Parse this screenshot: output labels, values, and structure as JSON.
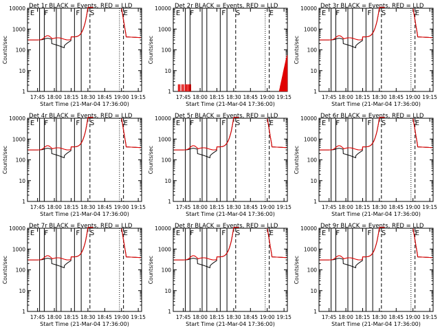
{
  "colors": {
    "events": "#000000",
    "lld": "#e00000",
    "axis": "#000000"
  },
  "chart_data": [
    {
      "type": "line",
      "title": "Det 1r  BLACK = Events, RED = LLD",
      "xlabel": "Start Time (21-Mar-04 17:36:00)",
      "ylabel": "Counts/sec",
      "yscale": "log",
      "ylim": [
        1,
        10000
      ],
      "xlim": [
        17.6,
        19.3
      ],
      "xticks": [
        "17:45",
        "18:00",
        "18:15",
        "18:30",
        "18:45",
        "19:00",
        "19:15"
      ],
      "markers": [
        "E",
        "F",
        "F",
        "S",
        "E"
      ],
      "profile": "normal"
    },
    {
      "type": "line",
      "title": "Det 2r  BLACK = Events, RED = LLD",
      "xlabel": "Start Time (21-Mar-04 17:36:00)",
      "ylabel": "Counts/sec",
      "yscale": "log",
      "ylim": [
        1,
        10000
      ],
      "xlim": [
        17.6,
        19.3
      ],
      "xticks": [
        "17:45",
        "18:00",
        "18:15",
        "18:30",
        "18:45",
        "19:00",
        "19:15"
      ],
      "markers": [
        "E",
        "F",
        "F",
        "S",
        "E"
      ],
      "profile": "noisy"
    },
    {
      "type": "line",
      "title": "Det 3r  BLACK = Events, RED = LLD",
      "xlabel": "Start Time (21-Mar-04 17:36:00)",
      "ylabel": "Counts/sec",
      "yscale": "log",
      "ylim": [
        1,
        10000
      ],
      "xlim": [
        17.6,
        19.3
      ],
      "xticks": [
        "17:45",
        "18:00",
        "18:15",
        "18:30",
        "18:45",
        "19:00",
        "19:15"
      ],
      "markers": [
        "E",
        "F",
        "F",
        "S",
        "E"
      ],
      "profile": "normal"
    },
    {
      "type": "line",
      "title": "Det 4r  BLACK = Events, RED = LLD",
      "xlabel": "Start Time (21-Mar-04 17:36:00)",
      "ylabel": "Counts/sec",
      "yscale": "log",
      "ylim": [
        1,
        10000
      ],
      "xlim": [
        17.6,
        19.3
      ],
      "xticks": [
        "17:45",
        "18:00",
        "18:15",
        "18:30",
        "18:45",
        "19:00",
        "19:15"
      ],
      "markers": [
        "E",
        "F",
        "F",
        "S",
        "E"
      ],
      "profile": "normal"
    },
    {
      "type": "line",
      "title": "Det 5r  BLACK = Events, RED = LLD",
      "xlabel": "Start Time (21-Mar-04 17:36:00)",
      "ylabel": "Counts/sec",
      "yscale": "log",
      "ylim": [
        1,
        10000
      ],
      "xlim": [
        17.6,
        19.3
      ],
      "xticks": [
        "17:45",
        "18:00",
        "18:15",
        "18:30",
        "18:45",
        "19:00",
        "19:15"
      ],
      "markers": [
        "E",
        "F",
        "F",
        "S",
        "E"
      ],
      "profile": "normal"
    },
    {
      "type": "line",
      "title": "Det 6r  BLACK = Events, RED = LLD",
      "xlabel": "Start Time (21-Mar-04 17:36:00)",
      "ylabel": "Counts/sec",
      "yscale": "log",
      "ylim": [
        1,
        10000
      ],
      "xlim": [
        17.6,
        19.3
      ],
      "xticks": [
        "17:45",
        "18:00",
        "18:15",
        "18:30",
        "18:45",
        "19:00",
        "19:15"
      ],
      "markers": [
        "E",
        "F",
        "F",
        "S",
        "E"
      ],
      "profile": "normal"
    },
    {
      "type": "line",
      "title": "Det 7r  BLACK = Events, RED = LLD",
      "xlabel": "Start Time (21-Mar-04 17:36:00)",
      "ylabel": "Counts/sec",
      "yscale": "log",
      "ylim": [
        1,
        10000
      ],
      "xlim": [
        17.6,
        19.3
      ],
      "xticks": [
        "17:45",
        "18:00",
        "18:15",
        "18:30",
        "18:45",
        "19:00",
        "19:15"
      ],
      "markers": [
        "E",
        "F",
        "F",
        "S",
        "E"
      ],
      "profile": "normal"
    },
    {
      "type": "line",
      "title": "Det 8r  BLACK = Events, RED = LLD",
      "xlabel": "Start Time (21-Mar-04 17:36:00)",
      "ylabel": "Counts/sec",
      "yscale": "log",
      "ylim": [
        1,
        10000
      ],
      "xlim": [
        17.6,
        19.3
      ],
      "xticks": [
        "17:45",
        "18:00",
        "18:15",
        "18:30",
        "18:45",
        "19:00",
        "19:15"
      ],
      "markers": [
        "E",
        "F",
        "F",
        "S",
        "E"
      ],
      "profile": "normal"
    },
    {
      "type": "line",
      "title": "Det 9r  BLACK = Events, RED = LLD",
      "xlabel": "Start Time (21-Mar-04 17:36:00)",
      "ylabel": "Counts/sec",
      "yscale": "log",
      "ylim": [
        1,
        10000
      ],
      "xlim": [
        17.6,
        19.3
      ],
      "xticks": [
        "17:45",
        "18:00",
        "18:15",
        "18:30",
        "18:45",
        "19:00",
        "19:15"
      ],
      "markers": [
        "E",
        "F",
        "F",
        "S",
        "E"
      ],
      "profile": "normal"
    }
  ],
  "yticks": [
    "10000",
    "1000",
    "100",
    "10",
    "1"
  ]
}
